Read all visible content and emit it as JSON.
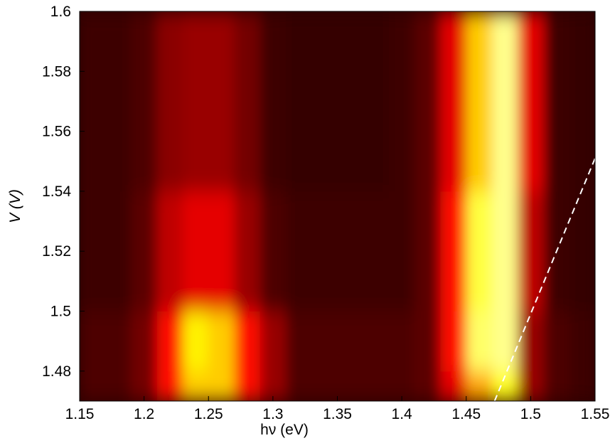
{
  "chart_data": {
    "type": "heatmap",
    "xlabel": "hν (eV)",
    "ylabel": "V (V)",
    "xlim": [
      1.15,
      1.55
    ],
    "ylim": [
      1.47,
      1.6
    ],
    "xticks": [
      1.15,
      1.2,
      1.25,
      1.3,
      1.35,
      1.4,
      1.45,
      1.5,
      1.55
    ],
    "yticks": [
      1.48,
      1.5,
      1.52,
      1.54,
      1.56,
      1.58,
      1.6
    ],
    "x_edges": [
      1.15,
      1.17,
      1.19,
      1.21,
      1.23,
      1.25,
      1.27,
      1.29,
      1.31,
      1.33,
      1.35,
      1.37,
      1.39,
      1.41,
      1.43,
      1.45,
      1.47,
      1.49,
      1.51,
      1.53,
      1.55
    ],
    "y_edges": [
      1.47,
      1.48,
      1.5,
      1.54,
      1.6
    ],
    "z": [
      [
        0.1,
        0.1,
        0.15,
        0.35,
        0.6,
        0.6,
        0.35,
        0.2,
        0.1,
        0.1,
        0.1,
        0.1,
        0.1,
        0.12,
        0.3,
        0.55,
        0.7,
        0.2,
        0.1,
        0.08
      ],
      [
        0.1,
        0.1,
        0.15,
        0.35,
        0.65,
        0.6,
        0.35,
        0.2,
        0.1,
        0.1,
        0.1,
        0.1,
        0.1,
        0.12,
        0.35,
        0.8,
        0.85,
        0.2,
        0.1,
        0.08
      ],
      [
        0.08,
        0.08,
        0.12,
        0.25,
        0.3,
        0.3,
        0.2,
        0.1,
        0.08,
        0.08,
        0.08,
        0.08,
        0.08,
        0.12,
        0.35,
        0.75,
        0.85,
        0.25,
        0.08,
        0.07
      ],
      [
        0.08,
        0.08,
        0.1,
        0.18,
        0.2,
        0.2,
        0.15,
        0.08,
        0.07,
        0.07,
        0.07,
        0.07,
        0.08,
        0.12,
        0.3,
        0.6,
        0.85,
        0.3,
        0.08,
        0.07
      ]
    ],
    "colormap": "hot",
    "annotation_line": {
      "x": [
        1.472,
        1.55
      ],
      "y": [
        1.47,
        1.551
      ],
      "color": "#ffffff",
      "dashed": true
    }
  }
}
